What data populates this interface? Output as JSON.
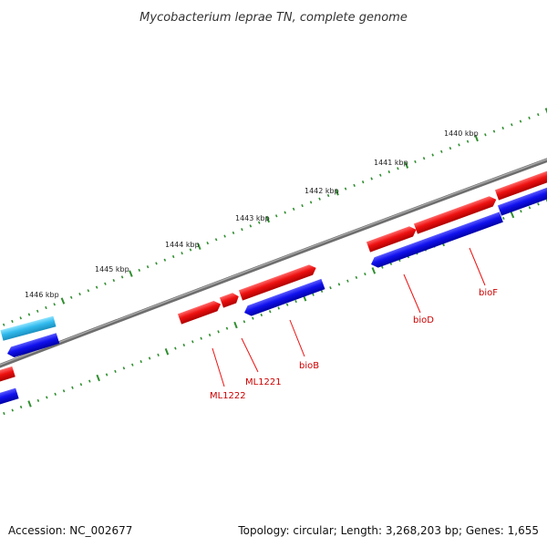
{
  "title": "Mycobacterium leprae TN, complete genome",
  "footer": {
    "accession": "Accession: NC_002677",
    "info": "Topology: circular; Length: 3,268,203 bp; Genes: 1,655"
  },
  "colors": {
    "backbone": "#7f7f7f",
    "tick": "#2f8f2f",
    "forward_gene": "#ee1111",
    "reverse_gene": "#1111ee",
    "other_gene": "#33bbee",
    "label": "#cc0000"
  },
  "kbp_labels": [
    "1440 kbp",
    "1441 kbp",
    "1442 kbp",
    "1443 kbp",
    "1444 kbp",
    "1445 kbp",
    "1446 kbp"
  ],
  "gene_labels": [
    "bioF",
    "bioD",
    "bioB",
    "ML1221",
    "ML1222"
  ]
}
